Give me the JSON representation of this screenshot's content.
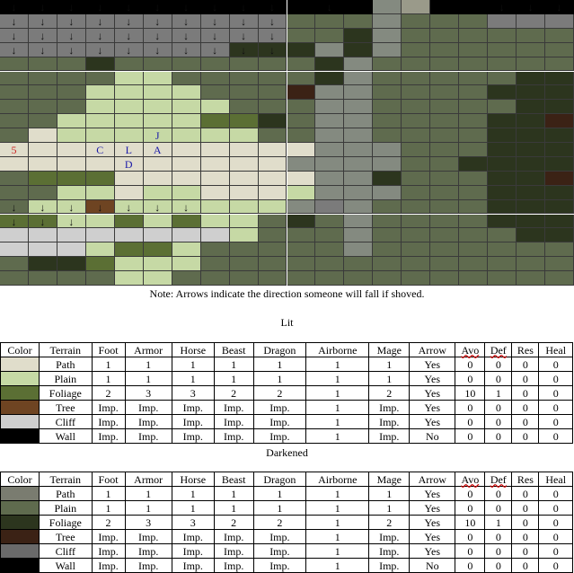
{
  "map": {
    "cols": 20,
    "rows": 20,
    "palette": {
      "K": "#000000",
      "g": "#5f6b4e",
      "d": "#848a80",
      "G": "#2c351e",
      "t": "#3b2215",
      "c": "#7b7b7b",
      "l": "#c6d9a5",
      "p": "#e0ddcb",
      "P": "#5b6f34",
      "T": "#6e4422",
      "C": "#cfcfcf",
      "X": "#9a9a8a"
    },
    "rows_data": [
      "KKKKKKKKKKKKKdXKKKKK",
      "ccccccccccgggdgggccc",
      "ccccccccccggGdgggggg",
      "ccccccccGGGdGdgggggg",
      "gggGgggggggGdggggggg",
      "ggggllgggggGdgggggGG",
      "gggllllgggtddggggGGG",
      "ggglllllgggddgggggGG",
      "gglllllPPGgddggggGGt",
      "gplllllllggddggggGGG",
      "pppppppppppdddgggGGG",
      "ppppppppppddddggGGGG",
      "gPPPpppppppddGgggGGt",
      "ggllpllpppldddgggGGG",
      "gllTlllllldcdggggGGG",
      "PPllPlPllgGgdggggGGG",
      "CCCCCCCClgggdgggggGG",
      "CCClPPlgggggdggggggg",
      "gGGPlllggggggggggggg",
      "ggggllgggggggggggggg"
    ],
    "arrow": "↓",
    "arrows": [
      [
        0,
        0
      ],
      [
        0,
        1
      ],
      [
        0,
        2
      ],
      [
        0,
        3
      ],
      [
        0,
        4
      ],
      [
        0,
        5
      ],
      [
        0,
        6
      ],
      [
        0,
        7
      ],
      [
        0,
        8
      ],
      [
        0,
        9
      ],
      [
        0,
        11
      ],
      [
        0,
        17
      ],
      [
        0,
        18
      ],
      [
        0,
        19
      ],
      [
        1,
        0
      ],
      [
        1,
        1
      ],
      [
        1,
        2
      ],
      [
        1,
        3
      ],
      [
        1,
        4
      ],
      [
        1,
        5
      ],
      [
        1,
        6
      ],
      [
        1,
        7
      ],
      [
        1,
        8
      ],
      [
        1,
        9
      ],
      [
        2,
        0
      ],
      [
        2,
        1
      ],
      [
        2,
        2
      ],
      [
        2,
        3
      ],
      [
        2,
        4
      ],
      [
        2,
        5
      ],
      [
        2,
        6
      ],
      [
        2,
        7
      ],
      [
        2,
        8
      ],
      [
        2,
        9
      ],
      [
        3,
        0
      ],
      [
        3,
        1
      ],
      [
        3,
        2
      ],
      [
        3,
        3
      ],
      [
        3,
        4
      ],
      [
        3,
        5
      ],
      [
        3,
        6
      ],
      [
        3,
        7
      ],
      [
        3,
        8
      ],
      [
        3,
        9
      ],
      [
        14,
        0
      ],
      [
        14,
        1
      ],
      [
        14,
        2
      ],
      [
        14,
        3
      ],
      [
        14,
        4
      ],
      [
        14,
        5
      ],
      [
        14,
        6
      ],
      [
        15,
        0
      ],
      [
        15,
        1
      ],
      [
        15,
        2
      ]
    ],
    "units": [
      {
        "row": 9,
        "col": 5,
        "label": "J",
        "color": "#1a1aa8"
      },
      {
        "row": 10,
        "col": 0,
        "label": "5",
        "color": "#cc2222"
      },
      {
        "row": 10,
        "col": 3,
        "label": "C",
        "color": "#1a1aa8"
      },
      {
        "row": 10,
        "col": 4,
        "label": "L",
        "color": "#1a1aa8"
      },
      {
        "row": 10,
        "col": 5,
        "label": "A",
        "color": "#1a1aa8"
      },
      {
        "row": 11,
        "col": 4,
        "label": "D",
        "color": "#1a1aa8"
      }
    ]
  },
  "note": "Note: Arrows indicate the direction someone will fall if shoved.",
  "lit_title": "Lit",
  "darkened_title": "Darkened",
  "headers": [
    "Color",
    "Terrain",
    "Foot",
    "Armor",
    "Horse",
    "Beast",
    "Dragon",
    "Airborne",
    "Mage",
    "Arrow",
    "Avo",
    "Def",
    "Res",
    "Heal"
  ],
  "lit_rows": [
    {
      "swatch": "#e0ddcb",
      "terrain": "Path",
      "values": [
        "1",
        "1",
        "1",
        "1",
        "1",
        "1",
        "1",
        "Yes",
        "0",
        "0",
        "0",
        "0"
      ]
    },
    {
      "swatch": "#c6d9a5",
      "terrain": "Plain",
      "values": [
        "1",
        "1",
        "1",
        "1",
        "1",
        "1",
        "1",
        "Yes",
        "0",
        "0",
        "0",
        "0"
      ]
    },
    {
      "swatch": "#5b6f34",
      "terrain": "Foliage",
      "values": [
        "2",
        "3",
        "3",
        "2",
        "2",
        "1",
        "2",
        "Yes",
        "10",
        "1",
        "0",
        "0"
      ]
    },
    {
      "swatch": "#6e4422",
      "terrain": "Tree",
      "values": [
        "Imp.",
        "Imp.",
        "Imp.",
        "Imp.",
        "Imp.",
        "1",
        "Imp.",
        "Yes",
        "0",
        "0",
        "0",
        "0"
      ]
    },
    {
      "swatch": "#cfcfcf",
      "terrain": "Cliff",
      "values": [
        "Imp.",
        "Imp.",
        "Imp.",
        "Imp.",
        "Imp.",
        "1",
        "Imp.",
        "Yes",
        "0",
        "0",
        "0",
        "0"
      ]
    },
    {
      "swatch": "#000000",
      "terrain": "Wall",
      "values": [
        "Imp.",
        "Imp.",
        "Imp.",
        "Imp.",
        "Imp.",
        "1",
        "Imp.",
        "No",
        "0",
        "0",
        "0",
        "0"
      ]
    }
  ],
  "dark_rows": [
    {
      "swatch": "#7a7c70",
      "terrain": "Path",
      "values": [
        "1",
        "1",
        "1",
        "1",
        "1",
        "1",
        "1",
        "Yes",
        "0",
        "0",
        "0",
        "0"
      ]
    },
    {
      "swatch": "#5f6b4e",
      "terrain": "Plain",
      "values": [
        "1",
        "1",
        "1",
        "1",
        "1",
        "1",
        "1",
        "Yes",
        "0",
        "0",
        "0",
        "0"
      ]
    },
    {
      "swatch": "#2c351e",
      "terrain": "Foliage",
      "values": [
        "2",
        "3",
        "3",
        "2",
        "2",
        "1",
        "2",
        "Yes",
        "10",
        "1",
        "0",
        "0"
      ]
    },
    {
      "swatch": "#3b2215",
      "terrain": "Tree",
      "values": [
        "Imp.",
        "Imp.",
        "Imp.",
        "Imp.",
        "Imp.",
        "1",
        "Imp.",
        "Yes",
        "0",
        "0",
        "0",
        "0"
      ]
    },
    {
      "swatch": "#6a6a6a",
      "terrain": "Cliff",
      "values": [
        "Imp.",
        "Imp.",
        "Imp.",
        "Imp.",
        "Imp.",
        "1",
        "Imp.",
        "Yes",
        "0",
        "0",
        "0",
        "0"
      ]
    },
    {
      "swatch": "#000000",
      "terrain": "Wall",
      "values": [
        "Imp.",
        "Imp.",
        "Imp.",
        "Imp.",
        "Imp.",
        "1",
        "Imp.",
        "No",
        "0",
        "0",
        "0",
        "0"
      ]
    }
  ]
}
